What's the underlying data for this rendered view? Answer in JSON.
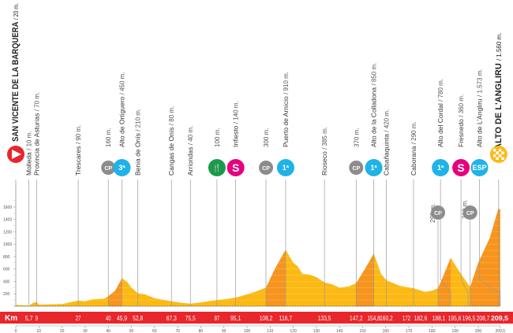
{
  "chart_data": {
    "type": "area",
    "title": "",
    "xlabel": "Km",
    "ylabel": "",
    "xlim": [
      0,
      209.5
    ],
    "ylim": [
      0,
      1700
    ],
    "y_ticks": [
      0,
      200,
      400,
      600,
      800,
      1000,
      1200,
      1400,
      1600
    ],
    "x_ticks": [
      "0",
      "10",
      "20",
      "30",
      "40",
      "50",
      "60",
      "70",
      "80",
      "90",
      "100",
      "110",
      "120",
      "130",
      "140",
      "150",
      "160",
      "170",
      "180",
      "190",
      "200",
      "209,5"
    ],
    "grid": true,
    "colors": {
      "profile": "#fdb913",
      "climb": "#f7941d",
      "km_bar": "#e8262b",
      "start": "#e8262b",
      "mountain": "#1fb3e6",
      "sprint": "#e5007e",
      "feed": "#1a9b4a",
      "checkpoint": "#8c8c8c",
      "finish": "#fdb913"
    },
    "profile": [
      [
        0,
        20
      ],
      [
        3,
        15
      ],
      [
        5.7,
        10
      ],
      [
        7.5,
        55
      ],
      [
        9,
        70
      ],
      [
        10,
        25
      ],
      [
        15,
        30
      ],
      [
        20,
        35
      ],
      [
        27,
        90
      ],
      [
        30,
        80
      ],
      [
        33,
        110
      ],
      [
        38,
        120
      ],
      [
        40,
        160
      ],
      [
        43,
        250
      ],
      [
        45.9,
        450
      ],
      [
        48,
        400
      ],
      [
        50,
        300
      ],
      [
        52.8,
        210
      ],
      [
        56,
        190
      ],
      [
        60,
        130
      ],
      [
        67.3,
        80
      ],
      [
        72,
        55
      ],
      [
        75.5,
        40
      ],
      [
        80,
        60
      ],
      [
        85,
        90
      ],
      [
        87,
        100
      ],
      [
        92,
        120
      ],
      [
        95.1,
        140
      ],
      [
        100,
        190
      ],
      [
        104,
        240
      ],
      [
        108.2,
        300
      ],
      [
        112,
        600
      ],
      [
        116.7,
        910
      ],
      [
        120,
        700
      ],
      [
        122,
        640
      ],
      [
        124,
        520
      ],
      [
        127,
        510
      ],
      [
        130,
        470
      ],
      [
        133.5,
        385
      ],
      [
        137,
        350
      ],
      [
        140,
        300
      ],
      [
        144,
        320
      ],
      [
        147.2,
        370
      ],
      [
        151,
        600
      ],
      [
        154.8,
        850
      ],
      [
        158,
        520
      ],
      [
        160.2,
        420
      ],
      [
        166,
        330
      ],
      [
        172,
        290
      ],
      [
        177,
        230
      ],
      [
        180,
        250
      ],
      [
        182.6,
        290
      ],
      [
        185,
        500
      ],
      [
        188.1,
        780
      ],
      [
        192,
        550
      ],
      [
        196.5,
        310
      ],
      [
        200,
        700
      ],
      [
        205,
        1100
      ],
      [
        208.7,
        1573
      ],
      [
        209.5,
        1560
      ]
    ],
    "climbs": [
      [
        40,
        45.9
      ],
      [
        108.2,
        116.7
      ],
      [
        147.2,
        154.8
      ],
      [
        182.6,
        188.1
      ],
      [
        196.5,
        209.5
      ]
    ],
    "points": [
      {
        "km": "0",
        "kmv": 0,
        "name": "SAN VICENTE DE LA BARQUERA",
        "alt": "/ 20 m.",
        "icon": "start",
        "big": true
      },
      {
        "km": "5,7",
        "kmv": 5.7,
        "name": "Molleda",
        "alt": "/ 10 m.",
        "icon": ""
      },
      {
        "km": "9",
        "kmv": 9,
        "name": "Provincia de Asturias",
        "alt": "/ 70 m.",
        "icon": ""
      },
      {
        "km": "27",
        "kmv": 27,
        "name": "Trescares",
        "alt": "/ 90 m.",
        "icon": ""
      },
      {
        "km": "40",
        "kmv": 40,
        "name": "",
        "alt": "160 m.",
        "icon": "checkpoint",
        "label": "CP"
      },
      {
        "km": "45,9",
        "kmv": 45.9,
        "name": "Alto de Ortiguero",
        "alt": "/ 450 m.",
        "icon": "mountain",
        "label": "3ª"
      },
      {
        "km": "52,8",
        "kmv": 52.8,
        "name": "Benia de Onís",
        "alt": "/ 210 m.",
        "icon": ""
      },
      {
        "km": "67,3",
        "kmv": 67.3,
        "name": "Cangas de Onís",
        "alt": "/ 80 m.",
        "icon": ""
      },
      {
        "km": "75,5",
        "kmv": 75.5,
        "name": "Arriondas",
        "alt": "/ 40 m.",
        "icon": ""
      },
      {
        "km": "87",
        "kmv": 87,
        "name": "",
        "alt": "100 m.",
        "icon": "feed",
        "label": "🍴"
      },
      {
        "km": "95,1",
        "kmv": 95.1,
        "name": "Infiesto",
        "alt": "/ 140 m.",
        "icon": "sprint",
        "label": "S"
      },
      {
        "km": "108,2",
        "kmv": 108.2,
        "name": "",
        "alt": "300 m.",
        "icon": "checkpoint",
        "label": "CP"
      },
      {
        "km": "116,7",
        "kmv": 116.7,
        "name": "Puerto de Arnicio",
        "alt": "/ 910 m.",
        "icon": "mountain",
        "label": "1ª"
      },
      {
        "km": "133,5",
        "kmv": 133.5,
        "name": "Rioseco",
        "alt": "/ 385 m.",
        "icon": ""
      },
      {
        "km": "147,2",
        "kmv": 147.2,
        "name": "",
        "alt": "370 m.",
        "icon": "checkpoint",
        "label": "CP"
      },
      {
        "km": "154,8",
        "kmv": 154.8,
        "name": "Alto de la Colladona",
        "alt": "/ 850 m.",
        "icon": "mountain",
        "label": "1ª"
      },
      {
        "km": "160,2",
        "kmv": 160.2,
        "name": "Cabañaquinta",
        "alt": "/ 420 m.",
        "icon": ""
      },
      {
        "km": "172",
        "kmv": 172,
        "name": "Caborana",
        "alt": "/ 290 m.",
        "icon": ""
      },
      {
        "km": "182,6",
        "kmv": 182.6,
        "name": "",
        "alt": "290 m.",
        "icon": "checkpoint",
        "label": "CP",
        "low": true
      },
      {
        "km": "188,1",
        "kmv": 188.1,
        "name": "Alto del Cordal",
        "alt": "/ 780 m.",
        "icon": "mountain",
        "label": "1ª"
      },
      {
        "km": "195,6",
        "kmv": 195.6,
        "name": "Fresnedo",
        "alt": "/ 360 m.",
        "icon": "sprint",
        "label": "S"
      },
      {
        "km": "196,5",
        "kmv": 196.5,
        "name": "",
        "alt": "310 m.",
        "icon": "checkpoint",
        "label": "CP",
        "low": true
      },
      {
        "km": "208,7",
        "kmv": 208.7,
        "name": "Alto de L'Angliru",
        "alt": "/ 1.573 m.",
        "icon": "mountain",
        "label": "ESP"
      },
      {
        "km": "209,5",
        "kmv": 209.5,
        "name": "ALTO DE L'ANGLIRU",
        "alt": "/ 1.560 m.",
        "icon": "finish",
        "big": true
      }
    ],
    "km_row": [
      "5,7",
      "9",
      "27",
      "40",
      "45,9",
      "52,8",
      "67,3",
      "75,5",
      "87",
      "95,1",
      "108,2",
      "116,7",
      "133,5",
      "147,2",
      "154,8",
      "160,2",
      "172",
      "182,6",
      "188,1",
      "195,6",
      "196,5",
      "208,7",
      "209,5"
    ]
  }
}
